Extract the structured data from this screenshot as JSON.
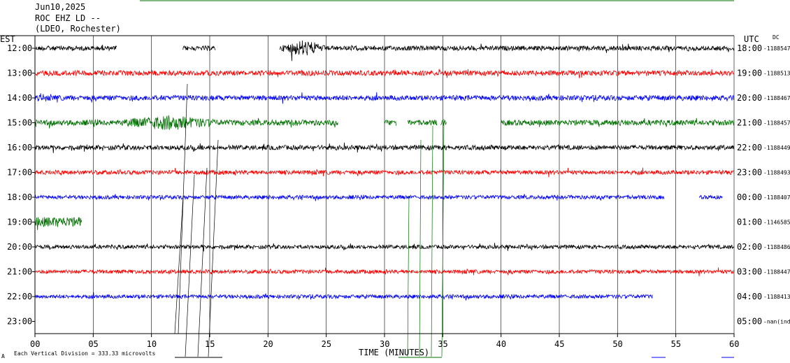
{
  "header": {
    "date": "Jun10,2025",
    "station": "ROC EHZ LD --",
    "network": "(LDEO, Rochester)"
  },
  "labels": {
    "left_tz": "EST",
    "right_tz": "UTC",
    "dc": "DC",
    "xlabel": "TIME (MINUTES)",
    "footer": "Each Vertical Division =  333.33 microvolts"
  },
  "colors": [
    "#000000",
    "#ff0000",
    "#0000ff",
    "#007000"
  ],
  "chart_data": {
    "type": "line",
    "title": "Jun10,2025 ROC EHZ LD -- (LDEO, Rochester)",
    "xlabel": "TIME (MINUTES)",
    "xlim": [
      0,
      60
    ],
    "xticks": [
      "00",
      "05",
      "10",
      "15",
      "20",
      "25",
      "30",
      "35",
      "40",
      "45",
      "50",
      "55",
      "60"
    ],
    "grid": true,
    "rows": [
      {
        "est": "12:00",
        "utc": "18:00",
        "dc": "-1188547",
        "segments": [
          [
            0,
            7
          ],
          [
            12.7,
            15.5
          ],
          [
            21,
            60
          ]
        ],
        "amp": 0.55,
        "burst": [
          21,
          25,
          2.8
        ]
      },
      {
        "est": "13:00",
        "utc": "19:00",
        "dc": "-1188513",
        "segments": [
          [
            0,
            60
          ]
        ],
        "amp": 0.6
      },
      {
        "est": "14:00",
        "utc": "20:00",
        "dc": "-1188467",
        "segments": [
          [
            0,
            60
          ]
        ],
        "amp": 0.6
      },
      {
        "est": "15:00",
        "utc": "21:00",
        "dc": "-1188457",
        "segments": [
          [
            0,
            26
          ],
          [
            30,
            31
          ],
          [
            32,
            34.5
          ],
          [
            34.8,
            35.3
          ],
          [
            40,
            60
          ]
        ],
        "amp": 0.65,
        "burst": [
          7,
          16,
          1.8
        ]
      },
      {
        "est": "16:00",
        "utc": "22:00",
        "dc": "-1188449",
        "segments": [
          [
            0,
            60
          ]
        ],
        "amp": 0.55
      },
      {
        "est": "17:00",
        "utc": "23:00",
        "dc": "-1188493",
        "segments": [
          [
            0,
            60
          ]
        ],
        "amp": 0.5
      },
      {
        "est": "18:00",
        "utc": "00:00",
        "dc": "-1188407",
        "segments": [
          [
            0,
            54
          ],
          [
            57,
            59
          ]
        ],
        "amp": 0.45
      },
      {
        "est": "19:00",
        "utc": "01:00",
        "dc": "-1146585",
        "segments": [
          [
            0,
            4
          ]
        ],
        "amp": 1.2
      },
      {
        "est": "20:00",
        "utc": "02:00",
        "dc": "-1188486",
        "segments": [
          [
            0,
            60
          ]
        ],
        "amp": 0.45
      },
      {
        "est": "21:00",
        "utc": "03:00",
        "dc": "-1188447",
        "segments": [
          [
            0,
            60
          ]
        ],
        "amp": 0.45
      },
      {
        "est": "22:00",
        "utc": "04:00",
        "dc": "-1188413",
        "segments": [
          [
            0,
            53
          ]
        ],
        "amp": 0.45
      },
      {
        "est": "23:00",
        "utc": "05:00",
        "dc": "-nan(ind",
        "segments": [],
        "amp": 0
      }
    ]
  }
}
